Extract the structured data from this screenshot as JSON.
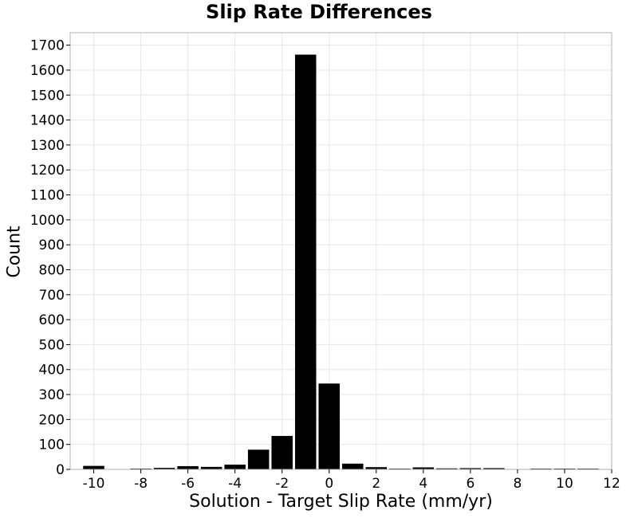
{
  "chart_data": {
    "type": "bar",
    "title": "Slip Rate Differences",
    "xlabel": "Solution - Target Slip Rate (mm/yr)",
    "ylabel": "Count",
    "xlim": [
      -11,
      12
    ],
    "ylim": [
      0,
      1750
    ],
    "xticks": [
      -10,
      -8,
      -6,
      -4,
      -2,
      0,
      2,
      4,
      6,
      8,
      10,
      12
    ],
    "yticks": [
      0,
      100,
      200,
      300,
      400,
      500,
      600,
      700,
      800,
      900,
      1000,
      1100,
      1200,
      1300,
      1400,
      1500,
      1600,
      1700
    ],
    "grid": true,
    "bin_width": 1,
    "bins": [
      {
        "x": -10,
        "value": 14
      },
      {
        "x": -9,
        "value": 0
      },
      {
        "x": -8,
        "value": 2
      },
      {
        "x": -7,
        "value": 6
      },
      {
        "x": -6,
        "value": 13
      },
      {
        "x": -5,
        "value": 10
      },
      {
        "x": -4,
        "value": 19
      },
      {
        "x": -3,
        "value": 79
      },
      {
        "x": -2,
        "value": 134
      },
      {
        "x": -1,
        "value": 1662
      },
      {
        "x": 0,
        "value": 344
      },
      {
        "x": 1,
        "value": 23
      },
      {
        "x": 2,
        "value": 9
      },
      {
        "x": 3,
        "value": 3
      },
      {
        "x": 4,
        "value": 8
      },
      {
        "x": 5,
        "value": 4
      },
      {
        "x": 6,
        "value": 5
      },
      {
        "x": 7,
        "value": 5
      },
      {
        "x": 8,
        "value": 0
      },
      {
        "x": 9,
        "value": 2
      },
      {
        "x": 10,
        "value": 1
      },
      {
        "x": 11,
        "value": 1
      }
    ],
    "colors": {
      "bar": "#000000",
      "grid": "#e6e6e6",
      "frame": "#b0b0b0",
      "background": "#ffffff"
    }
  }
}
